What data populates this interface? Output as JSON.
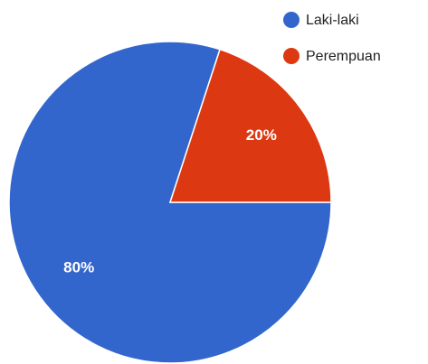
{
  "chart_data": {
    "type": "pie",
    "series": [
      {
        "name": "Laki-laki",
        "color": "#3366cc",
        "values": [
          80
        ],
        "value_labels": [
          "80%"
        ]
      },
      {
        "name": "Perempuan",
        "color": "#dc3912",
        "values": [
          20
        ],
        "value_labels": [
          "20%"
        ]
      }
    ],
    "legend": "top-right"
  }
}
